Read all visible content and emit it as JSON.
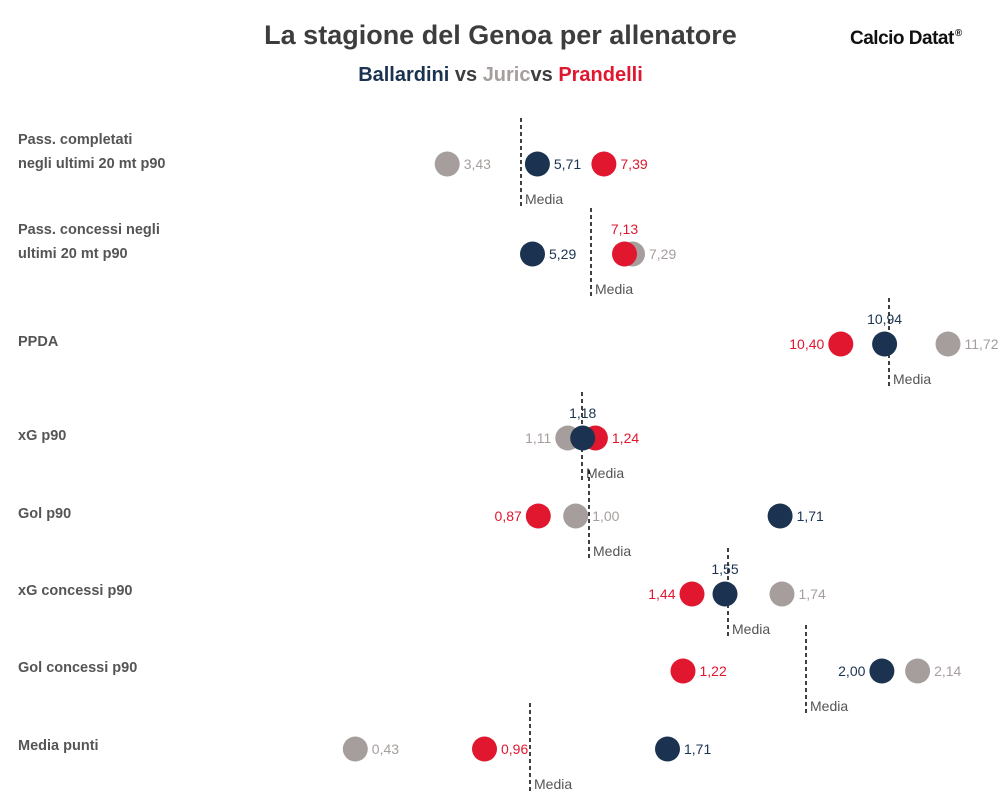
{
  "title": "La stagione del Genoa per allenatore",
  "subtitle": {
    "coach1": "Ballardini",
    "sep1": " vs ",
    "coach2": "Juric",
    "sep2": "vs ",
    "coach3": "Prandelli"
  },
  "logo": {
    "text": "Calcio Datat",
    "mark": "®"
  },
  "colors": {
    "Ballardini": "#1b3350",
    "Juric": "#a69e9d",
    "Prandelli": "#e0172f",
    "text": "#4a4a4a",
    "mean_line": "#111111"
  },
  "mean_label": "Media",
  "chart_data": {
    "type": "scatter",
    "series": [
      {
        "name": "Ballardini",
        "color": "#1b3350"
      },
      {
        "name": "Juric",
        "color": "#a69e9d"
      },
      {
        "name": "Prandelli",
        "color": "#e0172f"
      }
    ],
    "metrics": [
      {
        "label": "Pass. completati negli ultimi 20 mt p90",
        "values": {
          "Ballardini": "5,71",
          "Juric": "3,43",
          "Prandelli": "7,39"
        }
      },
      {
        "label": "Pass. concessi negli ultimi 20 mt p90",
        "values": {
          "Ballardini": "5,29",
          "Juric": "7,29",
          "Prandelli": "7,13"
        }
      },
      {
        "label": "PPDA",
        "values": {
          "Ballardini": "10,94",
          "Juric": "11,72",
          "Prandelli": "10,40"
        }
      },
      {
        "label": "xG p90",
        "values": {
          "Ballardini": "1,18",
          "Juric": "1,11",
          "Prandelli": "1,24"
        }
      },
      {
        "label": "Gol p90",
        "values": {
          "Ballardini": "1,71",
          "Juric": "1,00",
          "Prandelli": "0,87"
        }
      },
      {
        "label": "xG concessi p90",
        "values": {
          "Ballardini": "1,55",
          "Juric": "1,74",
          "Prandelli": "1,44"
        }
      },
      {
        "label": "Gol concessi p90",
        "values": {
          "Ballardini": "2,00",
          "Juric": "2,14",
          "Prandelli": "1,22"
        }
      },
      {
        "label": "Media punti",
        "values": {
          "Ballardini": "1,71",
          "Juric": "0,43",
          "Prandelli": "0,96"
        }
      }
    ]
  }
}
